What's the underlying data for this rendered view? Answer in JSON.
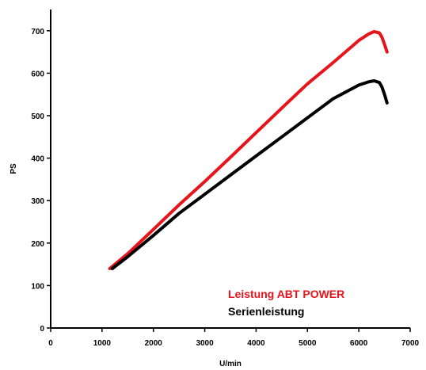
{
  "chart_data": {
    "type": "line",
    "title": "",
    "xlabel": "U/min",
    "ylabel": "PS",
    "xlim": [
      0,
      7000
    ],
    "ylim": [
      0,
      750
    ],
    "x_ticks": [
      0,
      1000,
      2000,
      3000,
      4000,
      5000,
      6000,
      7000
    ],
    "y_ticks": [
      0,
      100,
      200,
      300,
      400,
      500,
      600,
      700
    ],
    "grid": false,
    "legend_placement": "bottom-right",
    "series": [
      {
        "name": "Leistung ABT POWER",
        "color": "#e8141b",
        "x": [
          1150,
          1500,
          2000,
          2500,
          3000,
          3500,
          4000,
          4500,
          5000,
          5500,
          6000,
          6200,
          6300,
          6400,
          6450,
          6500,
          6550
        ],
        "y": [
          140,
          175,
          232,
          290,
          345,
          402,
          460,
          518,
          575,
          625,
          677,
          693,
          698,
          695,
          685,
          668,
          650
        ]
      },
      {
        "name": "Serienleistung",
        "color": "#000000",
        "x": [
          1200,
          1500,
          2000,
          2500,
          3000,
          3500,
          4000,
          4500,
          5000,
          5500,
          6000,
          6200,
          6300,
          6400,
          6450,
          6500,
          6550
        ],
        "y": [
          140,
          168,
          218,
          270,
          315,
          360,
          405,
          450,
          495,
          540,
          572,
          580,
          582,
          578,
          568,
          550,
          530
        ]
      }
    ]
  }
}
